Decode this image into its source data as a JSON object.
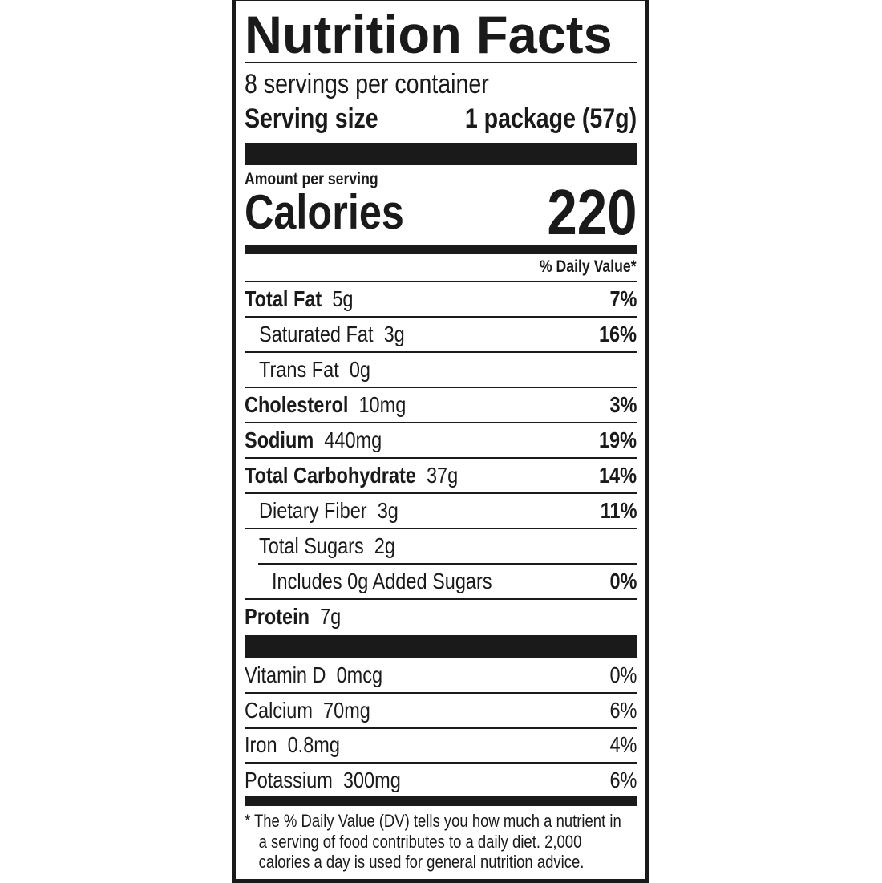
{
  "label": {
    "title": "Nutrition Facts",
    "servings_per_container": "8 servings per container",
    "serving_size_label": "Serving size",
    "serving_size_value": "1 package (57g)",
    "amount_per_serving": "Amount per serving",
    "calories_label": "Calories",
    "calories_value": "220",
    "daily_value_header": "% Daily Value*",
    "nutrients": [
      {
        "name": "Total Fat",
        "amount": "5g",
        "dv": "7%"
      },
      {
        "name": "Saturated Fat",
        "amount": "3g",
        "dv": "16%"
      },
      {
        "name": "Trans Fat",
        "amount": "0g",
        "dv": ""
      },
      {
        "name": "Cholesterol",
        "amount": "10mg",
        "dv": "3%"
      },
      {
        "name": "Sodium",
        "amount": "440mg",
        "dv": "19%"
      },
      {
        "name": "Total Carbohydrate",
        "amount": "37g",
        "dv": "14%"
      },
      {
        "name": "Dietary Fiber",
        "amount": "3g",
        "dv": "11%"
      },
      {
        "name": "Total Sugars",
        "amount": "2g",
        "dv": ""
      },
      {
        "name": "Includes 0g Added Sugars",
        "amount": "",
        "dv": "0%"
      },
      {
        "name": "Protein",
        "amount": "7g",
        "dv": ""
      }
    ],
    "vitamins": [
      {
        "name": "Vitamin D",
        "amount": "0mcg",
        "dv": "0%"
      },
      {
        "name": "Calcium",
        "amount": "70mg",
        "dv": "6%"
      },
      {
        "name": "Iron",
        "amount": "0.8mg",
        "dv": "4%"
      },
      {
        "name": "Potassium",
        "amount": "300mg",
        "dv": "6%"
      }
    ],
    "footnote": [
      "* The % Daily Value (DV) tells you how much a nutrient in",
      "a serving of food contributes to a daily diet. 2,000",
      "calories a day is used for general nutrition advice."
    ]
  }
}
